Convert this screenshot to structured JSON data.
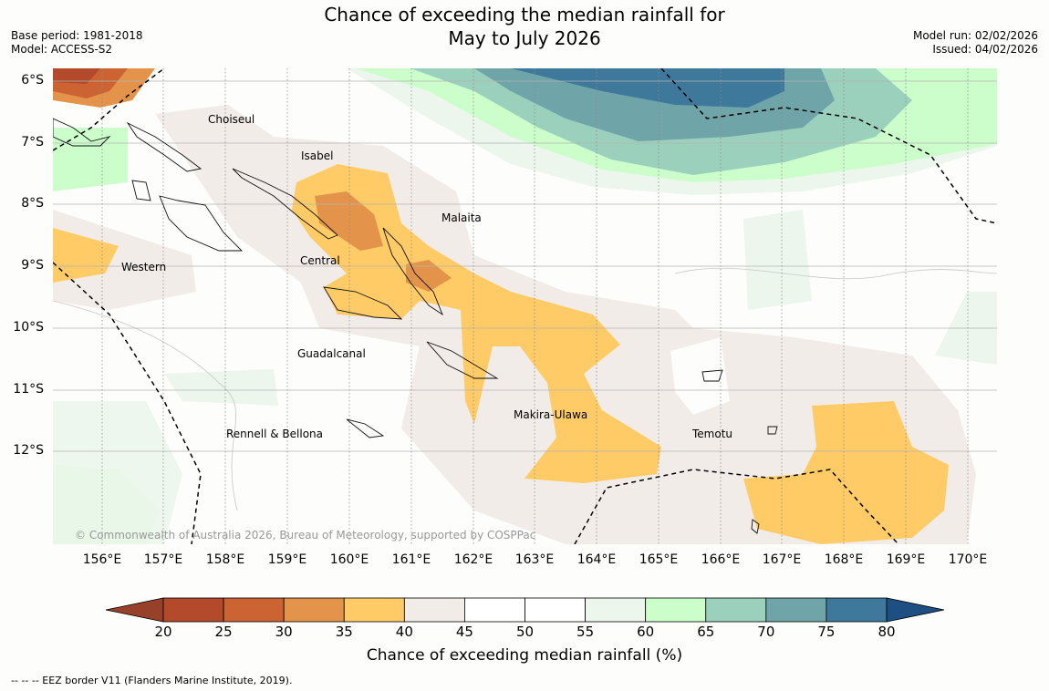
{
  "header": {
    "title_line1": "Chance of exceeding the median rainfall for",
    "title_line2": "May to July 2026",
    "base_period": "Base period: 1981-2018",
    "model": "Model: ACCESS-S2",
    "model_run": "Model run: 02/02/2026",
    "issued": "Issued: 04/02/2026"
  },
  "map": {
    "lat_labels": [
      "6°S",
      "7°S",
      "8°S",
      "9°S",
      "10°S",
      "11°S",
      "12°S"
    ],
    "lon_labels": [
      "156°E",
      "157°E",
      "158°E",
      "159°E",
      "160°E",
      "161°E",
      "162°E",
      "163°E",
      "164°E",
      "165°E",
      "166°E",
      "167°E",
      "168°E",
      "169°E",
      "170°E"
    ],
    "regions": [
      {
        "name": "Choiseul"
      },
      {
        "name": "Isabel"
      },
      {
        "name": "Malaita"
      },
      {
        "name": "Western"
      },
      {
        "name": "Central"
      },
      {
        "name": "Guadalcanal"
      },
      {
        "name": "Makira-Ulawa"
      },
      {
        "name": "Rennell & Bellona"
      },
      {
        "name": "Temotu"
      }
    ],
    "copyright": "© Commonwealth of Australia 2026, Bureau of Meteorology, supported by COSPPac"
  },
  "colorbar": {
    "ticks": [
      "20",
      "25",
      "30",
      "35",
      "40",
      "45",
      "50",
      "55",
      "60",
      "65",
      "70",
      "75",
      "80"
    ],
    "colors": [
      "#b24a2b",
      "#cc6332",
      "#e3944a",
      "#fecb66",
      "#f1ece7",
      "#ffffff",
      "#ffffff",
      "#ecf6ec",
      "#cbfecb",
      "#9ad0bc",
      "#6fa5a8",
      "#3e799c"
    ],
    "under_color": "#98412a",
    "over_color": "#1d4f83",
    "label": "Chance of exceeding median rainfall (%)"
  },
  "footer": "--  --  -- EEZ border V11 (Flanders Marine Institute, 2019)."
}
